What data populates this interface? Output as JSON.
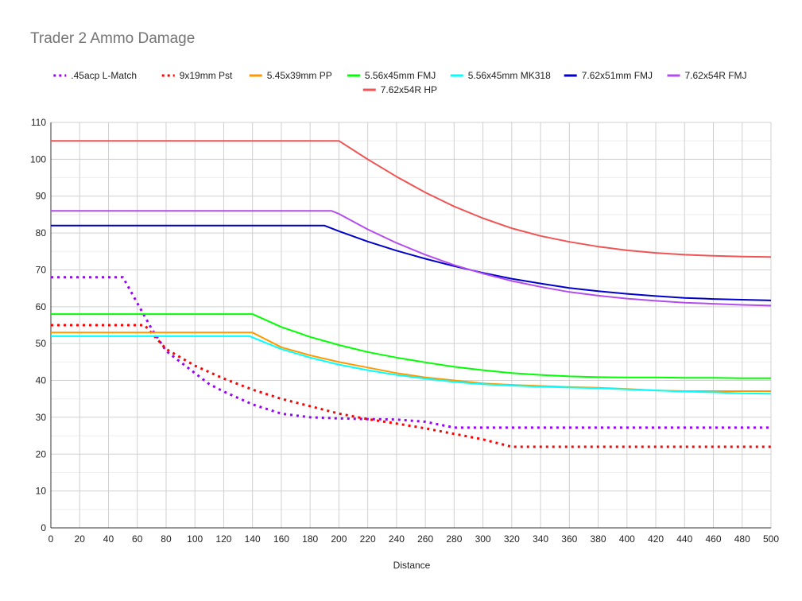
{
  "chart_data": {
    "type": "line",
    "title": "Trader 2 Ammo Damage",
    "xlabel": "Distance",
    "ylabel": "",
    "xlim": [
      0,
      500
    ],
    "ylim": [
      0,
      110
    ],
    "x_ticks": [
      0,
      20,
      40,
      60,
      80,
      100,
      120,
      140,
      160,
      180,
      200,
      220,
      240,
      260,
      280,
      300,
      320,
      340,
      360,
      380,
      400,
      420,
      440,
      460,
      480,
      500
    ],
    "y_ticks": [
      0,
      10,
      20,
      30,
      40,
      50,
      60,
      70,
      80,
      90,
      100,
      110
    ],
    "grid": true,
    "legend_position": "top",
    "series": [
      {
        "name": ".45acp L-Match",
        "color": "#9900ff",
        "dashed": true,
        "points": [
          [
            0,
            68
          ],
          [
            50,
            68
          ],
          [
            60,
            61
          ],
          [
            70,
            54
          ],
          [
            80,
            48
          ],
          [
            90,
            45
          ],
          [
            100,
            42
          ],
          [
            110,
            39
          ],
          [
            120,
            37
          ],
          [
            140,
            33.5
          ],
          [
            160,
            31
          ],
          [
            180,
            30
          ],
          [
            200,
            29.7
          ],
          [
            220,
            29.5
          ],
          [
            240,
            29.4
          ],
          [
            260,
            28.8
          ],
          [
            280,
            27.2
          ],
          [
            300,
            27.2
          ],
          [
            340,
            27.2
          ],
          [
            400,
            27.2
          ],
          [
            500,
            27.2
          ]
        ]
      },
      {
        "name": "9x19mm Pst",
        "color": "#ff0000",
        "dashed": true,
        "points": [
          [
            0,
            55
          ],
          [
            65,
            55
          ],
          [
            80,
            48.5
          ],
          [
            100,
            44
          ],
          [
            120,
            40.5
          ],
          [
            140,
            37.5
          ],
          [
            160,
            35
          ],
          [
            180,
            33
          ],
          [
            200,
            31
          ],
          [
            220,
            29.5
          ],
          [
            240,
            28.3
          ],
          [
            260,
            27
          ],
          [
            280,
            25.5
          ],
          [
            300,
            24
          ],
          [
            320,
            22
          ],
          [
            360,
            22
          ],
          [
            400,
            22
          ],
          [
            500,
            22
          ]
        ]
      },
      {
        "name": "5.45x39mm PP",
        "color": "#ff9900",
        "dashed": false,
        "points": [
          [
            0,
            53
          ],
          [
            140,
            53
          ],
          [
            160,
            49
          ],
          [
            180,
            46.8
          ],
          [
            200,
            45
          ],
          [
            220,
            43.5
          ],
          [
            240,
            42
          ],
          [
            260,
            40.8
          ],
          [
            280,
            40
          ],
          [
            300,
            39.2
          ],
          [
            320,
            38.8
          ],
          [
            340,
            38.5
          ],
          [
            360,
            38.2
          ],
          [
            380,
            38
          ],
          [
            400,
            37.7
          ],
          [
            420,
            37.3
          ],
          [
            440,
            37.1
          ],
          [
            460,
            37.1
          ],
          [
            480,
            37.1
          ],
          [
            500,
            37.1
          ]
        ]
      },
      {
        "name": "5.56x45mm FMJ",
        "color": "#00ff00",
        "dashed": false,
        "points": [
          [
            0,
            58
          ],
          [
            140,
            58
          ],
          [
            160,
            54.5
          ],
          [
            180,
            51.8
          ],
          [
            200,
            49.6
          ],
          [
            220,
            47.7
          ],
          [
            240,
            46.2
          ],
          [
            260,
            44.9
          ],
          [
            280,
            43.7
          ],
          [
            300,
            42.8
          ],
          [
            320,
            42
          ],
          [
            340,
            41.5
          ],
          [
            360,
            41.1
          ],
          [
            380,
            40.9
          ],
          [
            400,
            40.8
          ],
          [
            420,
            40.8
          ],
          [
            440,
            40.7
          ],
          [
            460,
            40.7
          ],
          [
            480,
            40.6
          ],
          [
            500,
            40.6
          ]
        ]
      },
      {
        "name": "5.56x45mm MK318",
        "color": "#00ffff",
        "dashed": false,
        "points": [
          [
            0,
            52
          ],
          [
            138,
            52
          ],
          [
            160,
            48.5
          ],
          [
            180,
            46.2
          ],
          [
            200,
            44.3
          ],
          [
            220,
            42.8
          ],
          [
            240,
            41.5
          ],
          [
            260,
            40.5
          ],
          [
            280,
            39.6
          ],
          [
            300,
            39
          ],
          [
            320,
            38.6
          ],
          [
            340,
            38.3
          ],
          [
            360,
            38.1
          ],
          [
            380,
            37.9
          ],
          [
            400,
            37.6
          ],
          [
            420,
            37.3
          ],
          [
            440,
            37
          ],
          [
            460,
            36.8
          ],
          [
            480,
            36.5
          ],
          [
            500,
            36.4
          ]
        ]
      },
      {
        "name": "7.62x51mm FMJ",
        "color": "#0000cc",
        "dashed": false,
        "points": [
          [
            0,
            82
          ],
          [
            190,
            82
          ],
          [
            200,
            80.5
          ],
          [
            220,
            77.7
          ],
          [
            240,
            75.2
          ],
          [
            260,
            73
          ],
          [
            280,
            71
          ],
          [
            300,
            69.2
          ],
          [
            320,
            67.6
          ],
          [
            340,
            66.3
          ],
          [
            360,
            65.1
          ],
          [
            380,
            64.2
          ],
          [
            400,
            63.5
          ],
          [
            420,
            62.9
          ],
          [
            440,
            62.4
          ],
          [
            460,
            62.1
          ],
          [
            480,
            61.9
          ],
          [
            500,
            61.7
          ]
        ]
      },
      {
        "name": "7.62x54R FMJ",
        "color": "#b44cf0",
        "dashed": false,
        "points": [
          [
            0,
            86
          ],
          [
            195,
            86
          ],
          [
            200,
            85.2
          ],
          [
            220,
            81
          ],
          [
            240,
            77.3
          ],
          [
            260,
            74.1
          ],
          [
            280,
            71.3
          ],
          [
            300,
            69
          ],
          [
            320,
            67
          ],
          [
            340,
            65.4
          ],
          [
            360,
            64
          ],
          [
            380,
            63
          ],
          [
            400,
            62.2
          ],
          [
            420,
            61.6
          ],
          [
            440,
            61.1
          ],
          [
            460,
            60.8
          ],
          [
            480,
            60.5
          ],
          [
            500,
            60.3
          ]
        ]
      },
      {
        "name": "7.62x54R HP",
        "color": "#f05454",
        "dashed": false,
        "points": [
          [
            0,
            105
          ],
          [
            200,
            105
          ],
          [
            220,
            100
          ],
          [
            240,
            95.3
          ],
          [
            260,
            91
          ],
          [
            280,
            87.2
          ],
          [
            300,
            84
          ],
          [
            320,
            81.3
          ],
          [
            340,
            79.2
          ],
          [
            360,
            77.6
          ],
          [
            380,
            76.3
          ],
          [
            400,
            75.3
          ],
          [
            420,
            74.6
          ],
          [
            440,
            74.1
          ],
          [
            460,
            73.8
          ],
          [
            480,
            73.6
          ],
          [
            500,
            73.5
          ]
        ]
      }
    ]
  }
}
